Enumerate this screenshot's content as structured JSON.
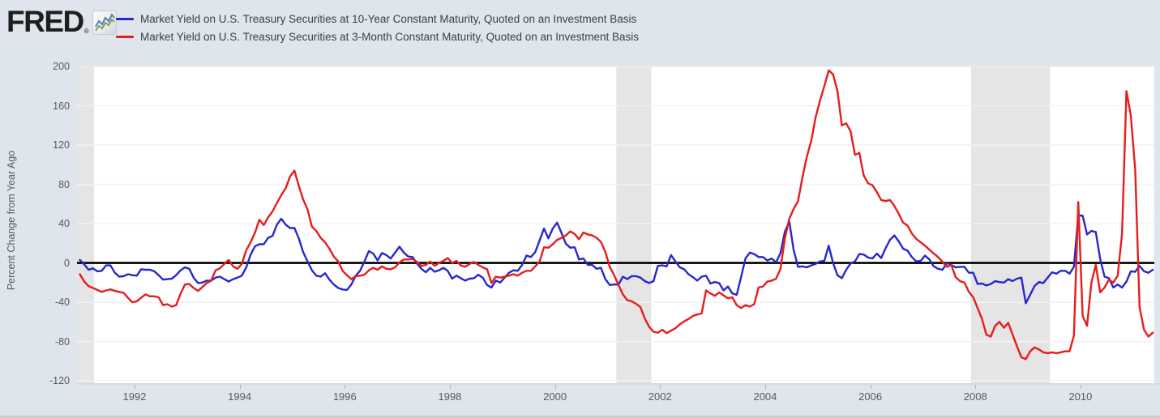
{
  "header": {
    "logo": "FRED",
    "registered": "®",
    "logo_icon": "sparkline-chart-icon"
  },
  "legend": [
    {
      "label": "Market Yield on U.S. Treasury Securities at 10-Year Constant Maturity, Quoted on an Investment Basis",
      "color": "#2727cf"
    },
    {
      "label": "Market Yield on U.S. Treasury Securities at 3-Month Constant Maturity, Quoted on an Investment Basis",
      "color": "#e81c1c"
    }
  ],
  "colors": {
    "page_background": "#dee5ed",
    "plot_background": "#ffffff",
    "gridline": "#f2f2f2",
    "recession_band": "#e5e5e5",
    "zero_line": "#000000",
    "axis_text": "#5a5a5a",
    "series_blue": "#2727cf",
    "series_red": "#e81c1c"
  },
  "chart_data": {
    "type": "line",
    "title": "",
    "xlabel": "",
    "ylabel": "Percent Change from Year Ago",
    "grid": "horizontal-only",
    "legend_position": "top-left",
    "y_ticks": [
      200,
      160,
      120,
      80,
      40,
      0,
      -40,
      -80,
      -120
    ],
    "x_ticks": [
      1992,
      1994,
      1996,
      1998,
      2000,
      2002,
      2004,
      2006,
      2008,
      2010
    ],
    "xlim": [
      1990.905,
      2011.405
    ],
    "ylim": [
      -122.4,
      200
    ],
    "zero_baseline": true,
    "recession_bands_years": [
      [
        1990.5,
        1991.23
      ],
      [
        2001.167,
        2001.833
      ],
      [
        2007.917,
        2009.417
      ]
    ],
    "frequency": "monthly",
    "units": "Percent Change from Year Ago",
    "series": [
      {
        "name": "Market Yield on U.S. Treasury Securities at 10-Year Constant Maturity, Quoted on an Investment Basis",
        "color": "#2727cf",
        "start_year": 1990,
        "start_month": 12,
        "values": [
          3,
          -1.5,
          -7,
          -5.5,
          -8.5,
          -8,
          -2.5,
          -2.5,
          -10,
          -14,
          -13.5,
          -11.5,
          -12.5,
          -13,
          -6.5,
          -7,
          -7,
          -8.5,
          -12.5,
          -17,
          -16.5,
          -16,
          -12.5,
          -7.5,
          -4.5,
          -6,
          -15,
          -20.5,
          -20,
          -18,
          -18,
          -15,
          -14,
          -16.5,
          -19,
          -16.5,
          -15,
          -13,
          -4.5,
          8.5,
          17,
          19,
          19,
          25.5,
          27.5,
          39,
          45,
          39,
          35.5,
          35.5,
          25,
          11,
          1.5,
          -7.5,
          -13,
          -14,
          -10.5,
          -17,
          -22,
          -25.5,
          -27,
          -27.5,
          -22,
          -13,
          -8,
          1.5,
          12,
          9.5,
          2.5,
          10,
          8,
          4.5,
          10.5,
          16.5,
          10.5,
          6.5,
          6,
          -0.5,
          -6,
          -9.5,
          -5,
          -9,
          -7.5,
          -5,
          -8,
          -16,
          -13,
          -15.5,
          -18,
          -16,
          -15.5,
          -12,
          -15,
          -22.5,
          -25,
          -18,
          -20,
          -15,
          -10,
          -7.5,
          -8,
          -2,
          7.5,
          6,
          11,
          23,
          35,
          25,
          35,
          41,
          30.5,
          19.5,
          15.5,
          16,
          3.5,
          4.5,
          -2,
          -2,
          -6,
          -5,
          -16.5,
          -22.5,
          -22,
          -22,
          -14,
          -16.5,
          -13.5,
          -13.5,
          -15,
          -18.5,
          -20.5,
          -18.5,
          -3,
          -2.5,
          -3.5,
          8,
          1.5,
          -4.5,
          -6.5,
          -11.5,
          -14.5,
          -18,
          -14,
          -13,
          -21,
          -19.5,
          -20.5,
          -28,
          -24,
          -31,
          -32.5,
          -14.5,
          4.5,
          10.5,
          9,
          6,
          6,
          2.5,
          4.5,
          0.5,
          10,
          32,
          42,
          13,
          -4,
          -3.5,
          -4.5,
          -2.5,
          -1,
          1.5,
          2,
          17.5,
          0,
          -12.5,
          -15.5,
          -7,
          -0.5,
          1.5,
          9,
          8.5,
          5.5,
          4.5,
          9.5,
          5,
          15,
          23.5,
          28,
          22,
          14.5,
          12.5,
          6,
          1.5,
          2,
          7.5,
          3.5,
          -3.5,
          -6,
          -7,
          0,
          -2,
          -4.5,
          -4,
          -4,
          -10,
          -10,
          -21.5,
          -21,
          -23,
          -21.5,
          -18.5,
          -19.5,
          -20,
          -16.5,
          -18.5,
          -16,
          -15,
          -41,
          -32.5,
          -23.5,
          -19.5,
          -20.5,
          -15,
          -9.5,
          -11,
          -8,
          -8,
          -11,
          -4,
          48.5,
          48,
          29,
          32.5,
          31.5,
          4,
          -14,
          -15.5,
          -25,
          -22,
          -25,
          -19,
          -8.5,
          -9,
          -3,
          -8.5,
          -10,
          -7
        ]
      },
      {
        "name": "Market Yield on U.S. Treasury Securities at 3-Month Constant Maturity, Quoted on an Investment Basis",
        "color": "#e81c1c",
        "start_year": 1990,
        "start_month": 12,
        "values": [
          -11.5,
          -19,
          -23.5,
          -25.5,
          -27.5,
          -29.5,
          -28,
          -27,
          -28.5,
          -29.5,
          -30.5,
          -35.5,
          -40,
          -39,
          -35.5,
          -32,
          -34,
          -34,
          -35,
          -43,
          -42,
          -44.5,
          -43,
          -31.5,
          -22,
          -21.5,
          -25.5,
          -28.5,
          -24.5,
          -20.5,
          -18,
          -7.5,
          -5.5,
          -1,
          3,
          -3.5,
          -6,
          -1,
          13,
          21,
          31,
          44,
          38.5,
          46.5,
          52.5,
          61,
          69,
          76,
          88,
          94,
          78.5,
          64.5,
          54.5,
          37,
          32.5,
          25.5,
          21,
          14.5,
          6.5,
          1.5,
          -8,
          -12.5,
          -16.5,
          -13.5,
          -13,
          -12,
          -7.5,
          -5,
          -7,
          -3.5,
          -6,
          -6.5,
          -4.5,
          0.5,
          3.5,
          3.5,
          4,
          1,
          -3,
          -2,
          1.5,
          -3,
          0,
          2,
          5,
          0,
          2,
          -2.5,
          -4,
          -1,
          1,
          -2,
          -4.5,
          -6.5,
          -20.5,
          -14,
          -15,
          -14,
          -13,
          -11.5,
          -13,
          -10,
          -8,
          -8,
          -3.5,
          1.5,
          16,
          15.5,
          19,
          23.5,
          25.5,
          28,
          32,
          29.5,
          24,
          31,
          29,
          28,
          25.5,
          21.5,
          11,
          -4,
          -12.5,
          -22.5,
          -32,
          -38,
          -39,
          -41.5,
          -45,
          -56.5,
          -65,
          -70,
          -71,
          -68,
          -71.5,
          -69,
          -66.5,
          -62.5,
          -59.5,
          -57,
          -54,
          -52.5,
          -51.5,
          -28,
          -31,
          -33.5,
          -30,
          -33,
          -36,
          -35,
          -43,
          -46,
          -43,
          -44.5,
          -42,
          -25,
          -24,
          -19,
          -18,
          -16,
          -6,
          25,
          45,
          55,
          63,
          87,
          108,
          124,
          148,
          165,
          180,
          196,
          192,
          175,
          140,
          142,
          134,
          110,
          112,
          89,
          81,
          79,
          72,
          64,
          63,
          64,
          58,
          50,
          41,
          38,
          30,
          24.5,
          21,
          17.5,
          13.5,
          9.5,
          6,
          1,
          -4,
          -2,
          -14.5,
          -18.5,
          -20,
          -29.5,
          -35,
          -46,
          -57,
          -73,
          -75,
          -64,
          -60,
          -66,
          -61,
          -73,
          -85,
          -96,
          -98,
          -90,
          -86,
          -88,
          -91,
          -92,
          -91,
          -92,
          -91,
          -90,
          -90,
          -74,
          62,
          -54,
          -64,
          -20,
          -2,
          -30,
          -25,
          -17,
          -20,
          -13,
          30,
          175,
          150,
          95,
          -45,
          -68,
          -75,
          -71
        ]
      }
    ]
  }
}
